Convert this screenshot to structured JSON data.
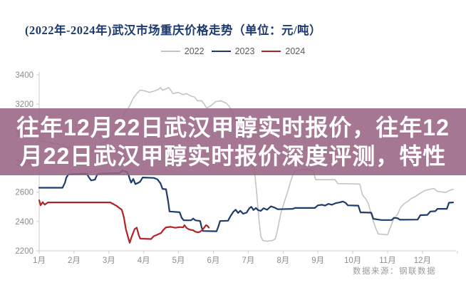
{
  "title": "(2022年-2024年)武汉市场重庆价格走势（单位：元/吨）",
  "overlay": {
    "line1": "往年12月22日武汉甲醇实时报价，往年12",
    "line2": "月22日武汉甲醇实时报价深度评测，特性",
    "background": "rgba(152,100,131,0.88)",
    "text_color": "#ffffff"
  },
  "source_note": "数据来源：钢联数据",
  "colors": {
    "title": "#1c3a70",
    "axis": "#cccccc",
    "tick_label": "#8c8c8c",
    "source": "#9a9a9a"
  },
  "chart_data": {
    "type": "line",
    "title": "(2022年-2024年)武汉市场重庆价格走势（单位：元/吨）",
    "ylabel": "元/吨",
    "xlabel": "",
    "grid": false,
    "legend_position": "top-center",
    "y_axis": {
      "min": 2200,
      "max": 3400,
      "step": 200,
      "ticks": [
        3400,
        3200,
        3000,
        2800,
        2600,
        2400,
        2200
      ]
    },
    "x_axis": {
      "labels": [
        "1月",
        "2月",
        "3月",
        "4月",
        "5月",
        "6月",
        "7月",
        "8月",
        "9月",
        "10月",
        "11月",
        "12月"
      ]
    },
    "series": [
      {
        "name": "2022",
        "color": "#c4c4c4",
        "stroke_width": 1.6,
        "points": [
          [
            1.0,
            2950
          ],
          [
            1.51,
            2930
          ],
          [
            1.92,
            2900
          ],
          [
            2.23,
            2920
          ],
          [
            2.53,
            2880
          ],
          [
            2.94,
            2950
          ],
          [
            3.25,
            3050
          ],
          [
            3.45,
            3140
          ],
          [
            3.56,
            3175
          ],
          [
            3.62,
            3200
          ],
          [
            3.7,
            3240
          ],
          [
            3.8,
            3272
          ],
          [
            3.9,
            3296
          ],
          [
            4.03,
            3290
          ],
          [
            4.17,
            3280
          ],
          [
            4.31,
            3290
          ],
          [
            4.42,
            3300
          ],
          [
            4.48,
            3313
          ],
          [
            4.54,
            3295
          ],
          [
            4.64,
            3305
          ],
          [
            4.72,
            3313
          ],
          [
            4.84,
            3272
          ],
          [
            4.99,
            3280
          ],
          [
            5.13,
            3265
          ],
          [
            5.23,
            3272
          ],
          [
            5.34,
            3257
          ],
          [
            5.46,
            3248
          ],
          [
            5.54,
            3223
          ],
          [
            5.66,
            3223
          ],
          [
            5.74,
            3199
          ],
          [
            5.81,
            3172
          ],
          [
            5.95,
            3194
          ],
          [
            6.07,
            3218
          ],
          [
            6.21,
            3223
          ],
          [
            6.36,
            3208
          ],
          [
            6.46,
            3184
          ],
          [
            6.62,
            3100
          ],
          [
            6.83,
            2950
          ],
          [
            7.03,
            2820
          ],
          [
            7.18,
            2750
          ],
          [
            7.24,
            2600
          ],
          [
            7.3,
            2430
          ],
          [
            7.36,
            2300
          ],
          [
            7.42,
            2270
          ],
          [
            7.54,
            2265
          ],
          [
            7.69,
            2270
          ],
          [
            7.77,
            2280
          ],
          [
            7.83,
            2330
          ],
          [
            7.93,
            2450
          ],
          [
            8.03,
            2530
          ],
          [
            8.14,
            2610
          ],
          [
            8.24,
            2690
          ],
          [
            8.32,
            2740
          ],
          [
            8.4,
            2750
          ],
          [
            8.67,
            2755
          ],
          [
            8.87,
            2745
          ],
          [
            8.93,
            2685
          ],
          [
            9.49,
            2685
          ],
          [
            9.57,
            2658
          ],
          [
            10.2,
            2655
          ],
          [
            10.28,
            2580
          ],
          [
            10.37,
            2555
          ],
          [
            10.45,
            2520
          ],
          [
            10.55,
            2430
          ],
          [
            10.65,
            2360
          ],
          [
            10.73,
            2315
          ],
          [
            11.0,
            2310
          ],
          [
            11.08,
            2360
          ],
          [
            11.18,
            2420
          ],
          [
            11.29,
            2450
          ],
          [
            11.37,
            2495
          ],
          [
            11.47,
            2520
          ],
          [
            11.57,
            2535
          ],
          [
            11.7,
            2560
          ],
          [
            11.8,
            2570
          ],
          [
            11.92,
            2590
          ],
          [
            12.06,
            2610
          ],
          [
            12.21,
            2620
          ],
          [
            12.33,
            2625
          ],
          [
            12.43,
            2605
          ],
          [
            12.66,
            2598
          ],
          [
            12.78,
            2612
          ],
          [
            12.88,
            2620
          ]
        ]
      },
      {
        "name": "2023",
        "color": "#1f3b6d",
        "stroke_width": 2.2,
        "points": [
          [
            1.0,
            2630
          ],
          [
            1.67,
            2630
          ],
          [
            1.74,
            2665
          ],
          [
            1.78,
            2700
          ],
          [
            1.84,
            2722
          ],
          [
            2.37,
            2725
          ],
          [
            2.43,
            2700
          ],
          [
            2.49,
            2680
          ],
          [
            2.6,
            2685
          ],
          [
            2.66,
            2718
          ],
          [
            2.72,
            2726
          ],
          [
            3.31,
            2730
          ],
          [
            3.39,
            2748
          ],
          [
            3.52,
            2738
          ],
          [
            3.56,
            2720
          ],
          [
            3.6,
            2690
          ],
          [
            3.64,
            2665
          ],
          [
            3.7,
            2690
          ],
          [
            3.76,
            2655
          ],
          [
            3.84,
            2663
          ],
          [
            3.9,
            2672
          ],
          [
            3.97,
            2700
          ],
          [
            4.29,
            2697
          ],
          [
            4.39,
            2688
          ],
          [
            4.48,
            2660
          ],
          [
            4.54,
            2622
          ],
          [
            4.64,
            2620
          ],
          [
            4.7,
            2540
          ],
          [
            4.74,
            2468
          ],
          [
            5.03,
            2463
          ],
          [
            5.09,
            2425
          ],
          [
            5.15,
            2408
          ],
          [
            5.36,
            2408
          ],
          [
            5.42,
            2420
          ],
          [
            5.48,
            2408
          ],
          [
            5.62,
            2403
          ],
          [
            5.66,
            2360
          ],
          [
            5.7,
            2335
          ],
          [
            6.09,
            2333
          ],
          [
            6.15,
            2370
          ],
          [
            6.19,
            2403
          ],
          [
            6.42,
            2405
          ],
          [
            6.5,
            2440
          ],
          [
            6.58,
            2468
          ],
          [
            6.64,
            2480
          ],
          [
            6.71,
            2458
          ],
          [
            6.77,
            2473
          ],
          [
            6.85,
            2453
          ],
          [
            6.95,
            2460
          ],
          [
            7.03,
            2490
          ],
          [
            7.09,
            2500
          ],
          [
            7.15,
            2478
          ],
          [
            7.22,
            2492
          ],
          [
            7.28,
            2478
          ],
          [
            7.36,
            2472
          ],
          [
            7.44,
            2490
          ],
          [
            7.54,
            2480
          ],
          [
            7.65,
            2503
          ],
          [
            7.75,
            2495
          ],
          [
            7.85,
            2483
          ],
          [
            8.28,
            2486
          ],
          [
            8.34,
            2492
          ],
          [
            8.91,
            2492
          ],
          [
            9.0,
            2510
          ],
          [
            9.12,
            2514
          ],
          [
            9.2,
            2508
          ],
          [
            9.3,
            2520
          ],
          [
            9.4,
            2514
          ],
          [
            9.51,
            2525
          ],
          [
            9.63,
            2530
          ],
          [
            9.71,
            2536
          ],
          [
            9.79,
            2528
          ],
          [
            9.86,
            2510
          ],
          [
            10.16,
            2508
          ],
          [
            10.22,
            2462
          ],
          [
            10.53,
            2460
          ],
          [
            10.59,
            2418
          ],
          [
            10.82,
            2410
          ],
          [
            11.12,
            2410
          ],
          [
            11.18,
            2425
          ],
          [
            11.29,
            2422
          ],
          [
            11.35,
            2412
          ],
          [
            11.86,
            2413
          ],
          [
            11.94,
            2443
          ],
          [
            12.14,
            2445
          ],
          [
            12.23,
            2468
          ],
          [
            12.37,
            2470
          ],
          [
            12.43,
            2486
          ],
          [
            12.7,
            2486
          ],
          [
            12.76,
            2528
          ],
          [
            12.88,
            2530
          ]
        ]
      },
      {
        "name": "2024",
        "color": "#b02328",
        "stroke_width": 2.2,
        "points": [
          [
            1.0,
            2545
          ],
          [
            1.04,
            2510
          ],
          [
            1.1,
            2532
          ],
          [
            1.16,
            2515
          ],
          [
            1.25,
            2530
          ],
          [
            3.04,
            2530
          ],
          [
            3.13,
            2518
          ],
          [
            3.23,
            2505
          ],
          [
            3.31,
            2490
          ],
          [
            3.37,
            2480
          ],
          [
            3.43,
            2430
          ],
          [
            3.49,
            2345
          ],
          [
            3.56,
            2285
          ],
          [
            3.6,
            2255
          ],
          [
            3.66,
            2300
          ],
          [
            3.74,
            2348
          ],
          [
            3.8,
            2358
          ],
          [
            3.86,
            2305
          ],
          [
            3.9,
            2283
          ],
          [
            4.21,
            2280
          ],
          [
            4.29,
            2300
          ],
          [
            4.39,
            2310
          ],
          [
            4.5,
            2322
          ],
          [
            4.56,
            2342
          ],
          [
            4.64,
            2360
          ],
          [
            4.78,
            2363
          ],
          [
            4.91,
            2357
          ],
          [
            5.03,
            2362
          ],
          [
            5.13,
            2360
          ],
          [
            5.17,
            2375
          ],
          [
            5.23,
            2356
          ],
          [
            5.31,
            2345
          ],
          [
            5.42,
            2340
          ],
          [
            5.48,
            2330
          ],
          [
            5.56,
            2326
          ],
          [
            5.62,
            2330
          ],
          [
            5.68,
            2342
          ],
          [
            5.74,
            2360
          ],
          [
            5.79,
            2375
          ],
          [
            5.83,
            2370
          ],
          [
            5.87,
            2358
          ]
        ]
      }
    ]
  }
}
